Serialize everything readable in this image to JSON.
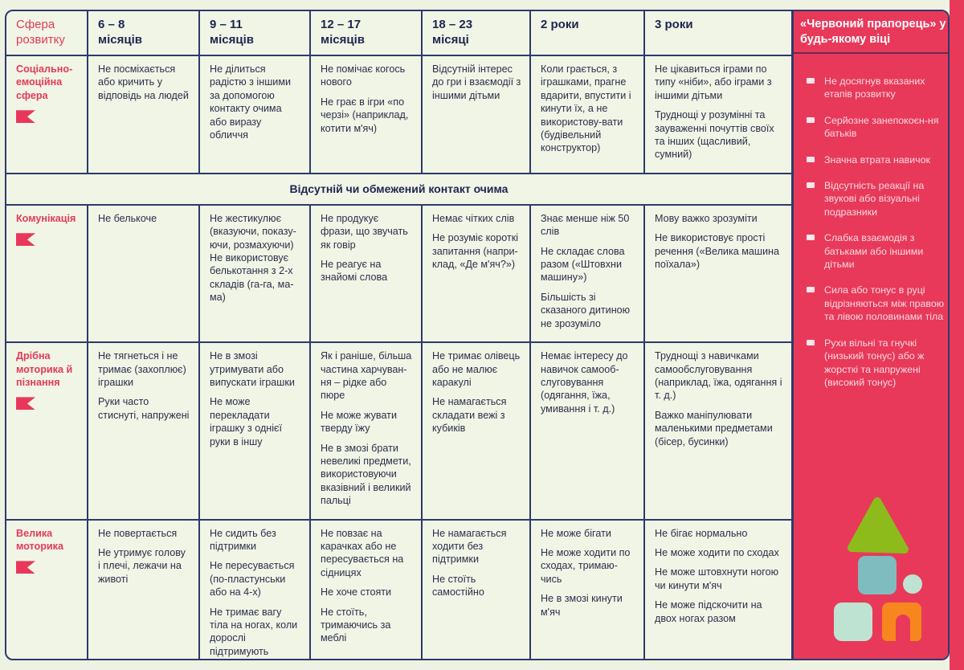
{
  "header": {
    "sphere": "Сфера розвитку",
    "ages": [
      [
        "6 – 8",
        "місяців"
      ],
      [
        "9 – 11",
        "місяців"
      ],
      [
        "12 – 17",
        "місяців"
      ],
      [
        "18 – 23",
        "місяці"
      ],
      [
        "2 роки",
        ""
      ],
      [
        "3 роки",
        ""
      ]
    ]
  },
  "rows": [
    {
      "label": "Соціально-емоційна сфера",
      "cells": [
        [
          "Не посміхається або кричить у відповідь на людей"
        ],
        [
          "Не ділиться радістю з іншими за допомогою контакту очима або виразу обличчя"
        ],
        [
          "Не помічає когось нового",
          "Не грає в ігри «по черзі» (наприклад, котити м'яч)"
        ],
        [
          "Відсутній інтерес до гри і взаємодії з іншими дітьми"
        ],
        [
          "Коли грається, з іграшками, прагне вдарити, впустити і кинути їх, а не використову-вати (будівельний конструктор)"
        ],
        [
          "Не цікавиться іграми по типу «ніби», або іграми з іншими дітьми",
          "Труднощі у розумінні та зауваженні почуттів своїх та інших (щасливий, сумний)"
        ]
      ]
    },
    {
      "span": "Відсутній чи обмежений контакт очима"
    },
    {
      "label": "Комунікація",
      "cells": [
        [
          "Не белькоче"
        ],
        [
          "Не жестикулює (вказуючи, показу-ючи, розмахуючи) Не використовує белькотання з 2-х складів (га-га, ма-ма)"
        ],
        [
          "Не продукує фрази, що звучать як говір",
          "Не реагує на знайомі слова"
        ],
        [
          "Немає чітких слів",
          "Не розуміє короткі запитання (напри-клад, «Де м'яч?»)"
        ],
        [
          "Знає менше ніж 50 слів",
          "Не складає слова разом («Штовхни машину»)",
          "Більшість зі сказаного дитиною не зрозуміло"
        ],
        [
          "Мову важко зрозуміти",
          "Не використовує прості речення («Велика машина поїхала»)"
        ]
      ]
    },
    {
      "label": "Дрібна моторика й пізнання",
      "cells": [
        [
          "Не тягнеться і не тримає (захоплює) іграшки",
          "Руки часто стиснуті, напружені"
        ],
        [
          "Не в змозі утримувати або випускати іграшки",
          "Не може перекладати іграшку з однієї руки в іншу"
        ],
        [
          "Як і раніше, більша частина харчуван-ня – рідке або пюре",
          "Не може жувати тверду їжу",
          "Не в змозі брати невеликі предмети, використовуючи вказівний і великий пальці"
        ],
        [
          "Не тримає олівець або не малює каракулі",
          "Не намагається складати вежі з кубиків"
        ],
        [
          "Немає інтересу до навичок самооб-слуговування (одягання, їжа, умивання і т. д.)"
        ],
        [
          "Труднощі з навичками самообслуговування (наприклад, їжа, одягання і т. д.)",
          "Важко маніпулювати маленькими предметами (бісер, бусинки)"
        ]
      ]
    },
    {
      "label": "Велика моторика",
      "cells": [
        [
          "Не повертається",
          "Не утримує голову і плечі, лежачи на животі"
        ],
        [
          "Не сидить без підтримки",
          "Не пересувається (по-пластунськи або на 4-х)",
          "Не тримає вагу тіла на ногах, коли дорослі підтримують"
        ],
        [
          "Не повзає на карачках або не пересувається на сідницях",
          "Не хоче стояти",
          "Не стоїть, тримаючись за меблі"
        ],
        [
          "Не намагається ходити без підтримки",
          "Не стоїть самостійно"
        ],
        [
          "Не може бігати",
          "Не може ходити по сходах, тримаю-чись",
          "Не в змозі кинути м'яч"
        ],
        [
          "Не бігає нормально",
          "Не може ходити по сходах",
          "Не може штовхнути ногою чи кинути м'яч",
          "Не може підскочити на двох ногах разом"
        ]
      ]
    }
  ],
  "red_flag": {
    "title": "«Червоний прапорець» у будь-якому віці",
    "items": [
      "Не досягнув вказаних етапів розвитку",
      "Серйозне занепокоєн-ня батьків",
      "Значна втрата навичок",
      "Відсутність реакції на звукові або візуальні подразники",
      "Слабка взаємодія з батьками або іншими дітьми",
      "Сила або тонус в руці відрізняються між правою та лівою половинами тіла",
      "Рухи вільні та гнучкі (низький тонус) або ж жорсткі та напружені (високий тонус)"
    ]
  },
  "colors": {
    "red": "#e8395a",
    "navy": "#2e3a6b",
    "bg": "#f1f5e6",
    "green": "#8dbb1c",
    "teal": "#7fbcc0",
    "mint": "#bfe3d2",
    "orange": "#f7861e"
  }
}
